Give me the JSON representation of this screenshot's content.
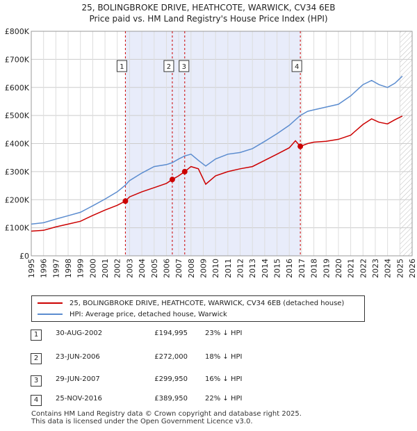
{
  "title": {
    "line1": "25, BOLINGBROKE DRIVE, HEATHCOTE, WARWICK, CV34 6EB",
    "line2": "Price paid vs. HM Land Registry's House Price Index (HPI)"
  },
  "colors": {
    "property": "#cc0000",
    "hpi": "#5b8ccf",
    "shade": "#e8ecfa",
    "marker_line": "#cc0000"
  },
  "chart_data": {
    "type": "line",
    "xlim": [
      1995,
      2026
    ],
    "ylim": [
      0,
      800000
    ],
    "y_ticks": [
      0,
      100000,
      200000,
      300000,
      400000,
      500000,
      600000,
      700000,
      800000
    ],
    "y_tick_labels": [
      "£0",
      "£100K",
      "£200K",
      "£300K",
      "£400K",
      "£500K",
      "£600K",
      "£700K",
      "£800K"
    ],
    "x_ticks": [
      1995,
      1996,
      1997,
      1998,
      1999,
      2000,
      2001,
      2002,
      2003,
      2004,
      2005,
      2006,
      2007,
      2008,
      2009,
      2010,
      2011,
      2012,
      2013,
      2014,
      2015,
      2016,
      2017,
      2018,
      2019,
      2020,
      2021,
      2022,
      2023,
      2024,
      2025,
      2026
    ],
    "x_tick_labels": [
      "1995",
      "1996",
      "1997",
      "1998",
      "1999",
      "2000",
      "2001",
      "2002",
      "2003",
      "2004",
      "2005",
      "2006",
      "2007",
      "2008",
      "2009",
      "2010",
      "2011",
      "2012",
      "2013",
      "2014",
      "2015",
      "2016",
      "2017",
      "2018",
      "2019",
      "2020",
      "2021",
      "2022",
      "2023",
      "2024",
      "2025",
      "2026"
    ],
    "shaded_ranges": [
      [
        2002.66,
        2016.9
      ]
    ],
    "forecast_start": 2025.0,
    "sale_markers": [
      {
        "label": "1",
        "x": 2002.66,
        "y": 194995
      },
      {
        "label": "2",
        "x": 2006.48,
        "y": 272000
      },
      {
        "label": "3",
        "x": 2007.49,
        "y": 299950
      },
      {
        "label": "4",
        "x": 2016.9,
        "y": 389950
      }
    ],
    "series": [
      {
        "name": "25, BOLINGBROKE DRIVE, HEATHCOTE, WARWICK, CV34 6EB (detached house)",
        "color": "#cc0000",
        "x": [
          1995.0,
          1996.0,
          1997.0,
          1998.0,
          1999.0,
          2000.0,
          2001.0,
          2002.0,
          2002.66,
          2003.0,
          2004.0,
          2005.0,
          2006.0,
          2006.48,
          2007.0,
          2007.49,
          2008.0,
          2008.6,
          2009.2,
          2010.0,
          2011.0,
          2012.0,
          2013.0,
          2014.0,
          2015.0,
          2016.0,
          2016.5,
          2016.9,
          2017.5,
          2018.0,
          2019.0,
          2020.0,
          2021.0,
          2022.0,
          2022.7,
          2023.3,
          2024.0,
          2024.6,
          2025.2
        ],
        "y": [
          88000,
          91000,
          103000,
          113000,
          123000,
          144000,
          163000,
          180000,
          194995,
          210000,
          228000,
          243000,
          258000,
          272000,
          285000,
          299950,
          318000,
          310000,
          255000,
          285000,
          300000,
          310000,
          318000,
          340000,
          362000,
          385000,
          410000,
          389950,
          400000,
          405000,
          408000,
          415000,
          430000,
          468000,
          488000,
          476000,
          470000,
          485000,
          498000
        ]
      },
      {
        "name": "HPI: Average price, detached house, Warwick",
        "color": "#5b8ccf",
        "x": [
          1995.0,
          1996.0,
          1997.0,
          1998.0,
          1999.0,
          2000.0,
          2001.0,
          2002.0,
          2002.66,
          2003.0,
          2004.0,
          2005.0,
          2006.0,
          2006.48,
          2007.0,
          2007.49,
          2008.0,
          2008.6,
          2009.2,
          2010.0,
          2011.0,
          2012.0,
          2013.0,
          2014.0,
          2015.0,
          2016.0,
          2016.9,
          2017.5,
          2018.0,
          2019.0,
          2020.0,
          2021.0,
          2022.0,
          2022.7,
          2023.3,
          2024.0,
          2024.6,
          2025.2
        ],
        "y": [
          113000,
          118000,
          131000,
          143000,
          155000,
          178000,
          202000,
          228000,
          252000,
          268000,
          295000,
          318000,
          325000,
          332000,
          345000,
          356000,
          362000,
          340000,
          320000,
          345000,
          362000,
          368000,
          382000,
          408000,
          435000,
          465000,
          500000,
          515000,
          520000,
          530000,
          540000,
          570000,
          610000,
          625000,
          610000,
          600000,
          615000,
          640000
        ]
      }
    ]
  },
  "legend": {
    "property_label": "25, BOLINGBROKE DRIVE, HEATHCOTE, WARWICK, CV34 6EB (detached house)",
    "hpi_label": "HPI: Average price, detached house, Warwick"
  },
  "sales": [
    {
      "num": "1",
      "date": "30-AUG-2002",
      "price": "£194,995",
      "hpi": "23% ↓ HPI"
    },
    {
      "num": "2",
      "date": "23-JUN-2006",
      "price": "£272,000",
      "hpi": "18% ↓ HPI"
    },
    {
      "num": "3",
      "date": "29-JUN-2007",
      "price": "£299,950",
      "hpi": "16% ↓ HPI"
    },
    {
      "num": "4",
      "date": "25-NOV-2016",
      "price": "£389,950",
      "hpi": "22% ↓ HPI"
    }
  ],
  "footer": {
    "line1": "Contains HM Land Registry data © Crown copyright and database right 2025.",
    "line2": "This data is licensed under the Open Government Licence v3.0."
  }
}
